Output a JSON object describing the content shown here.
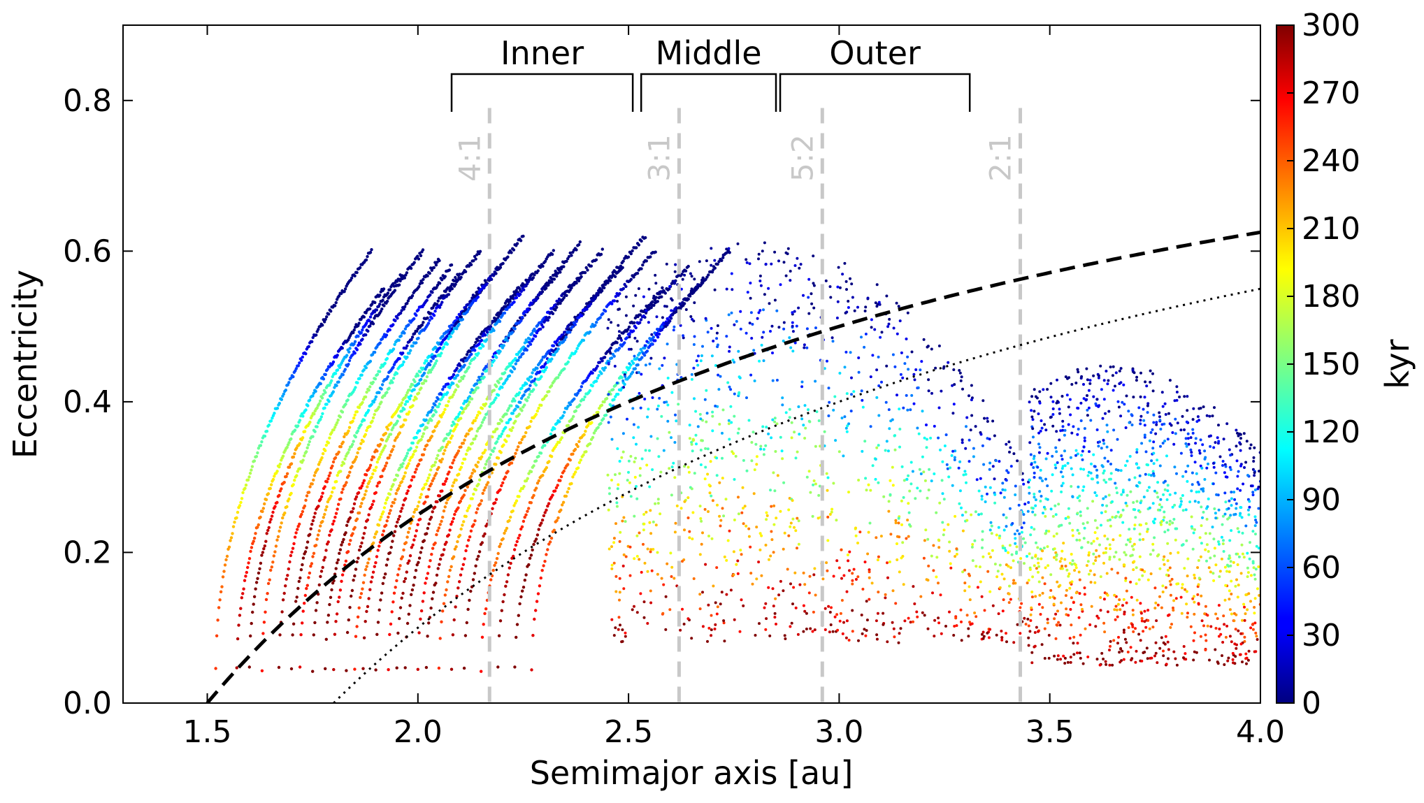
{
  "chart_data": {
    "type": "scatter",
    "title": "",
    "xlabel": "Semimajor axis [au]",
    "ylabel": "Eccentricity",
    "xlim": [
      1.3,
      4.0
    ],
    "ylim": [
      0.0,
      0.9
    ],
    "xticks": [
      1.5,
      2.0,
      2.5,
      3.0,
      3.5,
      4.0
    ],
    "xtick_labels": [
      "1.5",
      "2.0",
      "2.5",
      "3.0",
      "3.5",
      "4.0"
    ],
    "yticks": [
      0.0,
      0.2,
      0.4,
      0.6,
      0.8
    ],
    "ytick_labels": [
      "0.0",
      "0.2",
      "0.4",
      "0.6",
      "0.8"
    ],
    "grid": false,
    "colorbar": {
      "label": "kyr",
      "colormap": "jet",
      "range": [
        0,
        300
      ],
      "ticks": [
        0,
        30,
        60,
        90,
        120,
        150,
        180,
        210,
        240,
        270,
        300
      ],
      "tick_labels": [
        "0",
        "30",
        "60",
        "90",
        "120",
        "150",
        "180",
        "210",
        "240",
        "270",
        "300"
      ]
    },
    "resonances": [
      {
        "label": "4:1",
        "a": 2.17
      },
      {
        "label": "3:1",
        "a": 2.62
      },
      {
        "label": "5:2",
        "a": 2.96
      },
      {
        "label": "2:1",
        "a": 3.43
      }
    ],
    "regions": [
      {
        "label": "Inner",
        "a_min": 2.08,
        "a_max": 2.51
      },
      {
        "label": "Middle",
        "a_min": 2.53,
        "a_max": 2.85
      },
      {
        "label": "Outer",
        "a_min": 2.86,
        "a_max": 3.31
      }
    ],
    "curves": [
      {
        "name": "dashed",
        "style": "dashed",
        "description": "q = 1.5 au",
        "q": 1.5
      },
      {
        "name": "dotted",
        "style": "dotted",
        "description": "q = 1.8 au",
        "q": 1.8
      }
    ],
    "scatter_series": {
      "description": "Eccentricity vs semimajor axis of particle tracks colored by time in kyr",
      "tracks_inner_start_a": [
        1.52,
        1.57,
        1.6,
        1.63,
        1.67,
        1.7,
        1.72,
        1.75,
        1.78,
        1.8,
        1.83,
        1.85,
        1.87,
        1.9,
        1.93,
        1.95,
        1.97,
        2.0,
        2.02,
        2.05,
        2.08,
        2.11,
        2.15,
        2.19,
        2.23,
        2.27
      ],
      "track_e_start": 0.045,
      "track_e_top": [
        0.6,
        0.55,
        0.57,
        0.6,
        0.59,
        0.58,
        0.57,
        0.6,
        0.56,
        0.58,
        0.62,
        0.55,
        0.57,
        0.6,
        0.58,
        0.61,
        0.57,
        0.6,
        0.55,
        0.58,
        0.62,
        0.6,
        0.55,
        0.58,
        0.56,
        0.6
      ],
      "cluster_outer": {
        "a_range": [
          3.45,
          4.0
        ],
        "e_range": [
          0.05,
          0.45
        ]
      }
    }
  }
}
